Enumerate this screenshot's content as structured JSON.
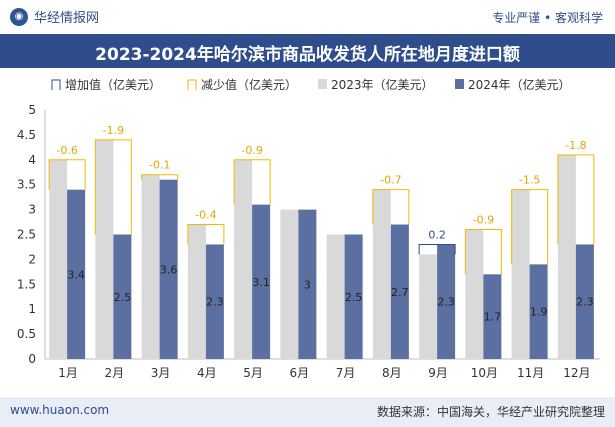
{
  "header": {
    "logo_text": "华经情报网",
    "tagline": "专业严谨 • 客观科学"
  },
  "footer": {
    "site": "www.huaon.com",
    "source": "数据来源：中国海关，华经产业研究院整理"
  },
  "colors": {
    "bar_2023": "#d9d9d9",
    "bar_2024": "#5b6fa0",
    "increase": "#2f4d8a",
    "decrease": "#f5b800",
    "title_bg": "#2f4d8a"
  },
  "chart_data": {
    "type": "bar",
    "title": "2023-2024年哈尔滨市商品收发货人所在地月度进口额",
    "categories": [
      "1月",
      "2月",
      "3月",
      "4月",
      "5月",
      "6月",
      "7月",
      "8月",
      "9月",
      "10月",
      "11月",
      "12月"
    ],
    "series": [
      {
        "name": "2023年（亿美元）",
        "values": [
          4.0,
          4.4,
          3.7,
          2.7,
          4.0,
          3.0,
          2.5,
          3.4,
          2.1,
          2.6,
          3.4,
          4.1
        ]
      },
      {
        "name": "2024年（亿美元）",
        "values": [
          3.4,
          2.5,
          3.6,
          2.3,
          3.1,
          3.0,
          2.5,
          2.7,
          2.3,
          1.7,
          1.9,
          2.3
        ]
      }
    ],
    "bar_labels_2024": [
      "3.4",
      "2.5",
      "3.6",
      "2.3",
      "3.1",
      "3",
      "2.5",
      "2.7",
      "2.3",
      "1.7",
      "1.9",
      "2.3"
    ],
    "change_labels": [
      "-0.6",
      "-1.9",
      "-0.1",
      "-0.4",
      "-0.9",
      "",
      "",
      "-0.7",
      "0.2",
      "-0.9",
      "-1.5",
      "-1.8"
    ],
    "legend": [
      "增加值（亿美元）",
      "减少值（亿美元）",
      "2023年（亿美元）",
      "2024年（亿美元）"
    ],
    "y_ticks": [
      "0",
      "0.5",
      "1",
      "1.5",
      "2",
      "2.5",
      "3",
      "3.5",
      "4",
      "4.5",
      "5"
    ],
    "ylim": [
      0,
      5
    ],
    "xlabel": "",
    "ylabel": ""
  }
}
